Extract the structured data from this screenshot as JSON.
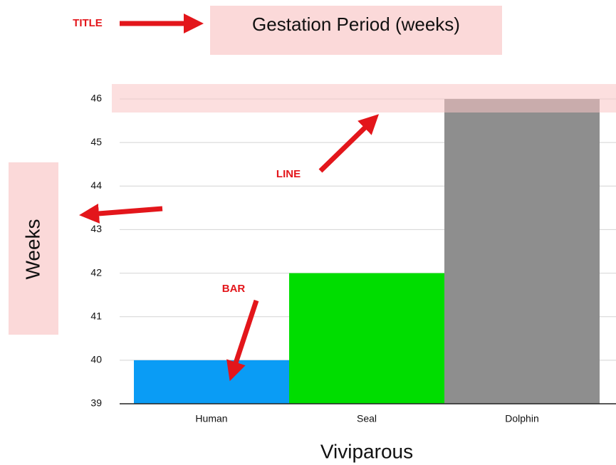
{
  "chart_data": {
    "type": "bar",
    "title": "Gestation Period (weeks)",
    "x_label": "Viviparous",
    "y_label": "Weeks",
    "categories": [
      "Human",
      "Seal",
      "Dolphin"
    ],
    "values": [
      40,
      42,
      46
    ],
    "colors": [
      "#0a9cf5",
      "#00dd00",
      "#8e8e8e"
    ],
    "ylim": [
      39,
      46
    ],
    "yticks": [
      39,
      40,
      41,
      42,
      43,
      44,
      45,
      46
    ],
    "grid": true,
    "annotations": [
      "TITLE",
      "LINE",
      "BAR"
    ]
  }
}
